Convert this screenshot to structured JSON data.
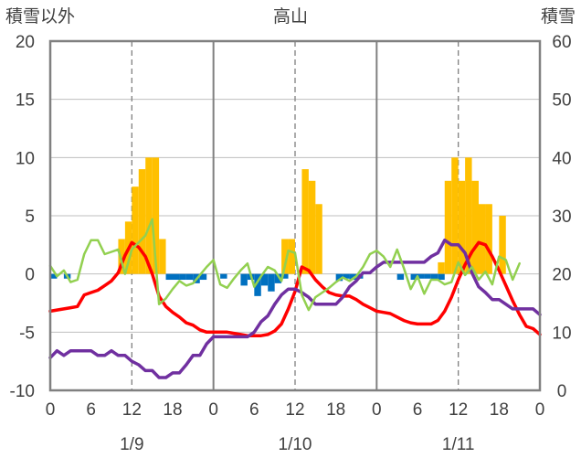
{
  "chart_data": {
    "type": "bar+line",
    "title": "高山",
    "left_axis_label": "積雪以外",
    "right_axis_label": "積雪",
    "left_ylim": [
      -10,
      20
    ],
    "left_ticks": [
      "-10",
      "-5",
      "0",
      "5",
      "10",
      "15",
      "20"
    ],
    "right_ylim": [
      0,
      60
    ],
    "right_ticks": [
      "0",
      "10",
      "20",
      "30",
      "40",
      "50",
      "60"
    ],
    "xlim": [
      0,
      72
    ],
    "x_tick_labels": [
      "0",
      "6",
      "12",
      "18",
      "0",
      "6",
      "12",
      "18",
      "0",
      "6",
      "12",
      "18",
      "0"
    ],
    "date_labels": [
      "1/9",
      "1/10",
      "1/11"
    ],
    "colors": {
      "snow": "#FFC000",
      "precip_neg": "#0070C0",
      "red": "#FF0000",
      "purple": "#7030A0",
      "green": "#92D050",
      "frame": "#808080",
      "grid_dash": "#808080"
    },
    "series": [
      {
        "color": "#FFC000",
        "kind": "bar",
        "axis": "right",
        "points": [
          [
            10.5,
            26
          ],
          [
            11.5,
            29
          ],
          [
            12.5,
            35
          ],
          [
            13.5,
            38
          ],
          [
            14.5,
            40
          ],
          [
            15.5,
            40
          ],
          [
            16.5,
            26
          ],
          [
            34.5,
            26
          ],
          [
            35.5,
            26
          ],
          [
            37.5,
            38
          ],
          [
            38.5,
            36
          ],
          [
            39.5,
            32
          ],
          [
            57.5,
            22
          ],
          [
            58.5,
            36
          ],
          [
            59.5,
            40
          ],
          [
            60.5,
            36
          ],
          [
            61.5,
            40
          ],
          [
            62.5,
            36
          ],
          [
            63.5,
            32
          ],
          [
            64.5,
            32
          ],
          [
            66.5,
            30
          ]
        ]
      },
      {
        "color": "#0070C0",
        "kind": "bar",
        "axis": "left",
        "points": [
          [
            0.5,
            -0.4
          ],
          [
            2.5,
            -0.4
          ],
          [
            17.5,
            -0.5
          ],
          [
            18.5,
            -0.5
          ],
          [
            19.5,
            -0.5
          ],
          [
            20.5,
            -0.5
          ],
          [
            21.5,
            -0.8
          ],
          [
            22.5,
            -0.5
          ],
          [
            25.5,
            -0.4
          ],
          [
            28.5,
            -1.0
          ],
          [
            29.5,
            -0.5
          ],
          [
            30.5,
            -1.9
          ],
          [
            31.5,
            -1.0
          ],
          [
            32.5,
            -1.5
          ],
          [
            33.5,
            -0.8
          ],
          [
            34.5,
            -0.4
          ],
          [
            42.5,
            -0.6
          ],
          [
            43.5,
            -0.4
          ],
          [
            44.5,
            -0.5
          ],
          [
            45.5,
            -0.4
          ],
          [
            51.5,
            -0.5
          ],
          [
            53.5,
            -0.5
          ],
          [
            54.5,
            -0.4
          ],
          [
            55.5,
            -0.4
          ],
          [
            56.5,
            -0.5
          ],
          [
            57.5,
            -0.5
          ]
        ]
      },
      {
        "color": "#FF0000",
        "kind": "line",
        "axis": "left",
        "points": [
          [
            0,
            -3.2
          ],
          [
            1,
            -3.1
          ],
          [
            2,
            -3.0
          ],
          [
            3,
            -2.9
          ],
          [
            4,
            -2.8
          ],
          [
            5,
            -1.8
          ],
          [
            6,
            -1.6
          ],
          [
            7,
            -1.4
          ],
          [
            8,
            -1.0
          ],
          [
            9,
            -0.6
          ],
          [
            10,
            0.1
          ],
          [
            11,
            1.6
          ],
          [
            12,
            2.7
          ],
          [
            13,
            2.3
          ],
          [
            14,
            1.5
          ],
          [
            15,
            0.0
          ],
          [
            16,
            -1.9
          ],
          [
            17,
            -2.8
          ],
          [
            18,
            -3.3
          ],
          [
            19,
            -3.7
          ],
          [
            20,
            -4.2
          ],
          [
            21,
            -4.4
          ],
          [
            22,
            -4.8
          ],
          [
            23,
            -5.0
          ],
          [
            24,
            -5.0
          ],
          [
            25,
            -5.0
          ],
          [
            26,
            -5.0
          ],
          [
            27,
            -5.1
          ],
          [
            28,
            -5.2
          ],
          [
            29,
            -5.3
          ],
          [
            30,
            -5.3
          ],
          [
            31,
            -5.3
          ],
          [
            32,
            -5.2
          ],
          [
            33,
            -4.9
          ],
          [
            34,
            -4.3
          ],
          [
            35,
            -3.0
          ],
          [
            36,
            -1.5
          ],
          [
            37,
            0.6
          ],
          [
            38,
            0.3
          ],
          [
            39,
            -0.5
          ],
          [
            40,
            -1.1
          ],
          [
            41,
            -1.6
          ],
          [
            42,
            -1.8
          ],
          [
            43,
            -1.9
          ],
          [
            44,
            -1.9
          ],
          [
            45,
            -2.2
          ],
          [
            46,
            -2.6
          ],
          [
            47,
            -2.9
          ],
          [
            48,
            -3.2
          ],
          [
            49,
            -3.3
          ],
          [
            50,
            -3.4
          ],
          [
            51,
            -3.7
          ],
          [
            52,
            -4.0
          ],
          [
            53,
            -4.2
          ],
          [
            54,
            -4.3
          ],
          [
            55,
            -4.3
          ],
          [
            56,
            -4.3
          ],
          [
            57,
            -4.0
          ],
          [
            58,
            -3.2
          ],
          [
            59,
            -2.0
          ],
          [
            60,
            -0.5
          ],
          [
            61,
            0.8
          ],
          [
            62,
            1.9
          ],
          [
            63,
            2.7
          ],
          [
            64,
            2.5
          ],
          [
            65,
            1.5
          ],
          [
            66,
            0.3
          ],
          [
            67,
            -1.0
          ],
          [
            68,
            -2.3
          ],
          [
            69,
            -3.5
          ],
          [
            70,
            -4.5
          ],
          [
            71,
            -4.7
          ],
          [
            72,
            -5.2
          ]
        ]
      },
      {
        "color": "#7030A0",
        "kind": "line",
        "axis": "left",
        "points": [
          [
            0,
            -7.2
          ],
          [
            1,
            -6.6
          ],
          [
            2,
            -7.0
          ],
          [
            3,
            -6.6
          ],
          [
            4,
            -6.6
          ],
          [
            5,
            -6.6
          ],
          [
            6,
            -6.6
          ],
          [
            7,
            -7.0
          ],
          [
            8,
            -7.0
          ],
          [
            9,
            -6.6
          ],
          [
            10,
            -7.0
          ],
          [
            11,
            -7.0
          ],
          [
            12,
            -7.5
          ],
          [
            13,
            -7.8
          ],
          [
            14,
            -8.3
          ],
          [
            15,
            -8.3
          ],
          [
            16,
            -8.9
          ],
          [
            17,
            -8.9
          ],
          [
            18,
            -8.5
          ],
          [
            19,
            -8.5
          ],
          [
            20,
            -7.8
          ],
          [
            21,
            -7.0
          ],
          [
            22,
            -7.0
          ],
          [
            23,
            -6.0
          ],
          [
            24,
            -5.4
          ],
          [
            25,
            -5.4
          ],
          [
            26,
            -5.4
          ],
          [
            27,
            -5.4
          ],
          [
            28,
            -5.4
          ],
          [
            29,
            -5.4
          ],
          [
            30,
            -5.0
          ],
          [
            31,
            -4.1
          ],
          [
            32,
            -3.6
          ],
          [
            33,
            -2.6
          ],
          [
            34,
            -1.8
          ],
          [
            35,
            -1.3
          ],
          [
            36,
            -1.3
          ],
          [
            37,
            -1.6
          ],
          [
            38,
            -2.0
          ],
          [
            39,
            -2.6
          ],
          [
            40,
            -2.6
          ],
          [
            41,
            -2.6
          ],
          [
            42,
            -2.6
          ],
          [
            43,
            -2.0
          ],
          [
            44,
            -1.1
          ],
          [
            45,
            -0.6
          ],
          [
            46,
            0.1
          ],
          [
            47,
            0.1
          ],
          [
            48,
            0.6
          ],
          [
            49,
            1.0
          ],
          [
            50,
            1.0
          ],
          [
            51,
            1.0
          ],
          [
            52,
            1.0
          ],
          [
            53,
            1.0
          ],
          [
            54,
            1.0
          ],
          [
            55,
            1.0
          ],
          [
            56,
            1.5
          ],
          [
            57,
            1.8
          ],
          [
            58,
            2.9
          ],
          [
            59,
            2.5
          ],
          [
            60,
            2.5
          ],
          [
            61,
            1.8
          ],
          [
            62,
            0.1
          ],
          [
            63,
            -1.1
          ],
          [
            64,
            -1.6
          ],
          [
            65,
            -2.2
          ],
          [
            66,
            -2.2
          ],
          [
            67,
            -2.6
          ],
          [
            68,
            -3.0
          ],
          [
            69,
            -3.0
          ],
          [
            70,
            -3.0
          ],
          [
            71,
            -3.0
          ],
          [
            72,
            -3.5
          ]
        ]
      },
      {
        "color": "#92D050",
        "kind": "line",
        "axis": "left",
        "points": [
          [
            0,
            0.7
          ],
          [
            1,
            -0.2
          ],
          [
            2,
            0.3
          ],
          [
            3,
            -0.7
          ],
          [
            4,
            -0.5
          ],
          [
            5,
            1.7
          ],
          [
            6,
            2.9
          ],
          [
            7,
            2.9
          ],
          [
            8,
            1.7
          ],
          [
            9,
            1.9
          ],
          [
            10,
            2.1
          ],
          [
            11,
            0.0
          ],
          [
            12,
            2.1
          ],
          [
            13,
            2.7
          ],
          [
            14,
            3.3
          ],
          [
            15,
            4.7
          ],
          [
            16,
            -2.6
          ],
          [
            17,
            -2.1
          ],
          [
            18,
            -1.3
          ],
          [
            19,
            -0.6
          ],
          [
            20,
            -1.0
          ],
          [
            21,
            -0.8
          ],
          [
            22,
            -0.1
          ],
          [
            23,
            0.6
          ],
          [
            24,
            1.2
          ],
          [
            25,
            -0.9
          ],
          [
            26,
            -1.2
          ],
          [
            27,
            -0.4
          ],
          [
            28,
            0.3
          ],
          [
            29,
            0.9
          ],
          [
            30,
            -1.1
          ],
          [
            31,
            -0.2
          ],
          [
            32,
            0.6
          ],
          [
            33,
            0.3
          ],
          [
            34,
            -0.6
          ],
          [
            35,
            2.0
          ],
          [
            36,
            1.8
          ],
          [
            37,
            -1.8
          ],
          [
            38,
            -3.1
          ],
          [
            39,
            -2.0
          ],
          [
            40,
            -1.6
          ],
          [
            41,
            -1.2
          ],
          [
            42,
            -0.7
          ],
          [
            43,
            -0.3
          ],
          [
            44,
            -0.6
          ],
          [
            45,
            -0.2
          ],
          [
            46,
            0.6
          ],
          [
            47,
            1.7
          ],
          [
            48,
            2.0
          ],
          [
            49,
            1.5
          ],
          [
            50,
            0.6
          ],
          [
            51,
            2.1
          ],
          [
            52,
            0.5
          ],
          [
            53,
            -1.3
          ],
          [
            54,
            -0.2
          ],
          [
            55,
            -1.7
          ],
          [
            56,
            -0.5
          ],
          [
            57,
            -0.5
          ],
          [
            58,
            -0.9
          ],
          [
            59,
            -0.7
          ],
          [
            60,
            1.0
          ],
          [
            61,
            -0.1
          ],
          [
            62,
            0.6
          ],
          [
            63,
            -0.5
          ],
          [
            64,
            0.2
          ],
          [
            65,
            -0.9
          ],
          [
            66,
            1.5
          ],
          [
            67,
            1.2
          ],
          [
            68,
            -0.5
          ],
          [
            69,
            0.9
          ]
        ]
      }
    ]
  }
}
